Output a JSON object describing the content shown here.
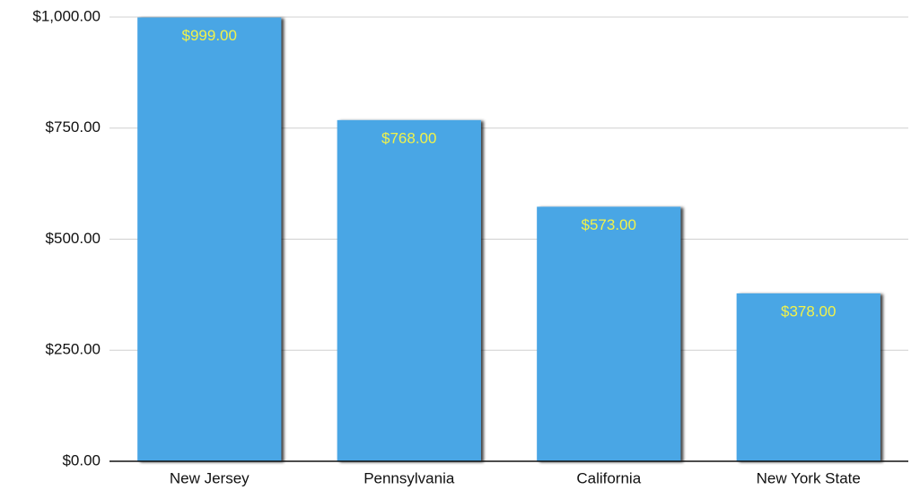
{
  "chart_data": {
    "type": "bar",
    "categories": [
      "New Jersey",
      "Pennsylvania",
      "California",
      "New York State"
    ],
    "values": [
      999,
      768,
      573,
      378
    ],
    "value_labels": [
      "$999.00",
      "$768.00",
      "$573.00",
      "$378.00"
    ],
    "color": "#4aa6e5",
    "label_color": "#f2f24a",
    "ylim": [
      0,
      1000
    ],
    "yticks": [
      {
        "value": 0,
        "label": "$0.00"
      },
      {
        "value": 250,
        "label": "$250.00"
      },
      {
        "value": 500,
        "label": "$500.00"
      },
      {
        "value": 750,
        "label": "$750.00"
      },
      {
        "value": 1000,
        "label": "$1,000.00"
      }
    ],
    "grid": true
  }
}
